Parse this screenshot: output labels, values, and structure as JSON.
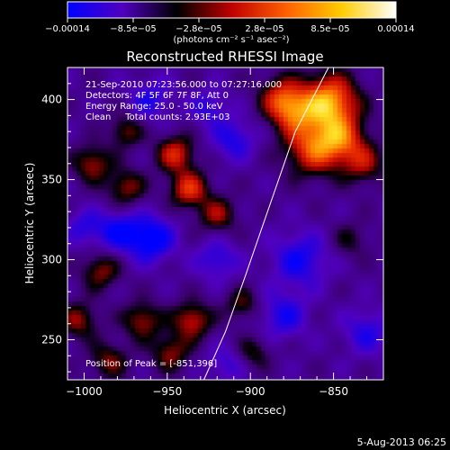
{
  "chart_data": {
    "type": "heatmap",
    "title": "Reconstructed RHESSI Image",
    "xlabel": "Heliocentric X (arcsec)",
    "ylabel": "Heliocentric Y (arcsec)",
    "xlim": [
      -1010,
      -820
    ],
    "ylim": [
      225,
      420
    ],
    "x_ticks": [
      -1000,
      -950,
      -900,
      -850
    ],
    "x_tick_labels": [
      "−1000",
      "−950",
      "−900",
      "−850"
    ],
    "y_ticks": [
      250,
      300,
      350,
      400
    ],
    "y_tick_labels": [
      "250",
      "300",
      "350",
      "400"
    ],
    "colorbar": {
      "range": [
        -0.00014,
        0.00014
      ],
      "tick_labels": [
        "−0.00014",
        "−8.5e−05",
        "−2.8e−05",
        "2.8e−05",
        "8.5e−05",
        "0.00014"
      ],
      "unit_label": "(photons cm⁻² s⁻¹ asec⁻²)",
      "colors": [
        "#0000ff",
        "#5000c0",
        "#000000",
        "#c00000",
        "#ff6000",
        "#ffcc00",
        "#ffffff"
      ]
    },
    "annotations": [
      "21-Sep-2010 07:23:56.000 to 07:27:16.000",
      "Detectors: 4F 5F 6F 7F 8F, Att 0",
      "Energy Range: 25.0 - 50.0 keV",
      "Clean     Total counts: 2.93E+03",
      "Position of Peak = [-851,396]"
    ],
    "peak": {
      "x": -851,
      "y": 396
    },
    "limb": [
      [
        -928,
        225
      ],
      [
        -915,
        255
      ],
      [
        -903,
        290
      ],
      [
        -893,
        320
      ],
      [
        -883,
        350
      ],
      [
        -873,
        380
      ],
      [
        -863,
        400
      ],
      [
        -853,
        420
      ]
    ],
    "sources": [
      {
        "x": -853,
        "y": 398,
        "a": 1.25,
        "s": 12
      },
      {
        "x": -862,
        "y": 370,
        "a": 0.9,
        "s": 12
      },
      {
        "x": -875,
        "y": 392,
        "a": 0.7,
        "s": 9
      },
      {
        "x": -882,
        "y": 402,
        "a": 0.65,
        "s": 9
      },
      {
        "x": -845,
        "y": 375,
        "a": 0.7,
        "s": 10
      },
      {
        "x": -832,
        "y": 360,
        "a": 0.55,
        "s": 9
      },
      {
        "x": -945,
        "y": 366,
        "a": 0.75,
        "s": 8
      },
      {
        "x": -937,
        "y": 344,
        "a": 0.8,
        "s": 8
      },
      {
        "x": -975,
        "y": 345,
        "a": 0.55,
        "s": 8
      },
      {
        "x": -995,
        "y": 360,
        "a": 0.6,
        "s": 8
      },
      {
        "x": -975,
        "y": 380,
        "a": 0.5,
        "s": 7
      },
      {
        "x": -920,
        "y": 328,
        "a": 0.55,
        "s": 8
      },
      {
        "x": -990,
        "y": 293,
        "a": 0.55,
        "s": 8
      },
      {
        "x": -1003,
        "y": 262,
        "a": 0.55,
        "s": 8
      },
      {
        "x": -965,
        "y": 262,
        "a": 0.6,
        "s": 8
      },
      {
        "x": -935,
        "y": 262,
        "a": 0.7,
        "s": 8
      },
      {
        "x": -948,
        "y": 242,
        "a": 0.55,
        "s": 8
      },
      {
        "x": -985,
        "y": 237,
        "a": 0.5,
        "s": 8
      },
      {
        "x": -905,
        "y": 272,
        "a": 0.45,
        "s": 7
      },
      {
        "x": -898,
        "y": 242,
        "a": 0.4,
        "s": 7
      },
      {
        "x": -840,
        "y": 312,
        "a": 0.3,
        "s": 8
      },
      {
        "x": -960,
        "y": 313,
        "a": -0.75,
        "s": 10
      },
      {
        "x": -980,
        "y": 318,
        "a": -0.55,
        "s": 9
      },
      {
        "x": -870,
        "y": 300,
        "a": -0.55,
        "s": 12
      },
      {
        "x": -880,
        "y": 265,
        "a": -0.5,
        "s": 10
      },
      {
        "x": -920,
        "y": 300,
        "a": -0.45,
        "s": 9
      },
      {
        "x": -1000,
        "y": 320,
        "a": -0.4,
        "s": 8
      },
      {
        "x": -910,
        "y": 375,
        "a": -0.5,
        "s": 9
      },
      {
        "x": -960,
        "y": 400,
        "a": -0.45,
        "s": 9
      },
      {
        "x": -830,
        "y": 255,
        "a": -0.45,
        "s": 10
      },
      {
        "x": -925,
        "y": 395,
        "a": -0.4,
        "s": 8
      },
      {
        "x": -915,
        "y": 235,
        "a": -0.35,
        "s": 8
      }
    ]
  },
  "footer": {
    "date": "5-Aug-2013 06:25"
  }
}
